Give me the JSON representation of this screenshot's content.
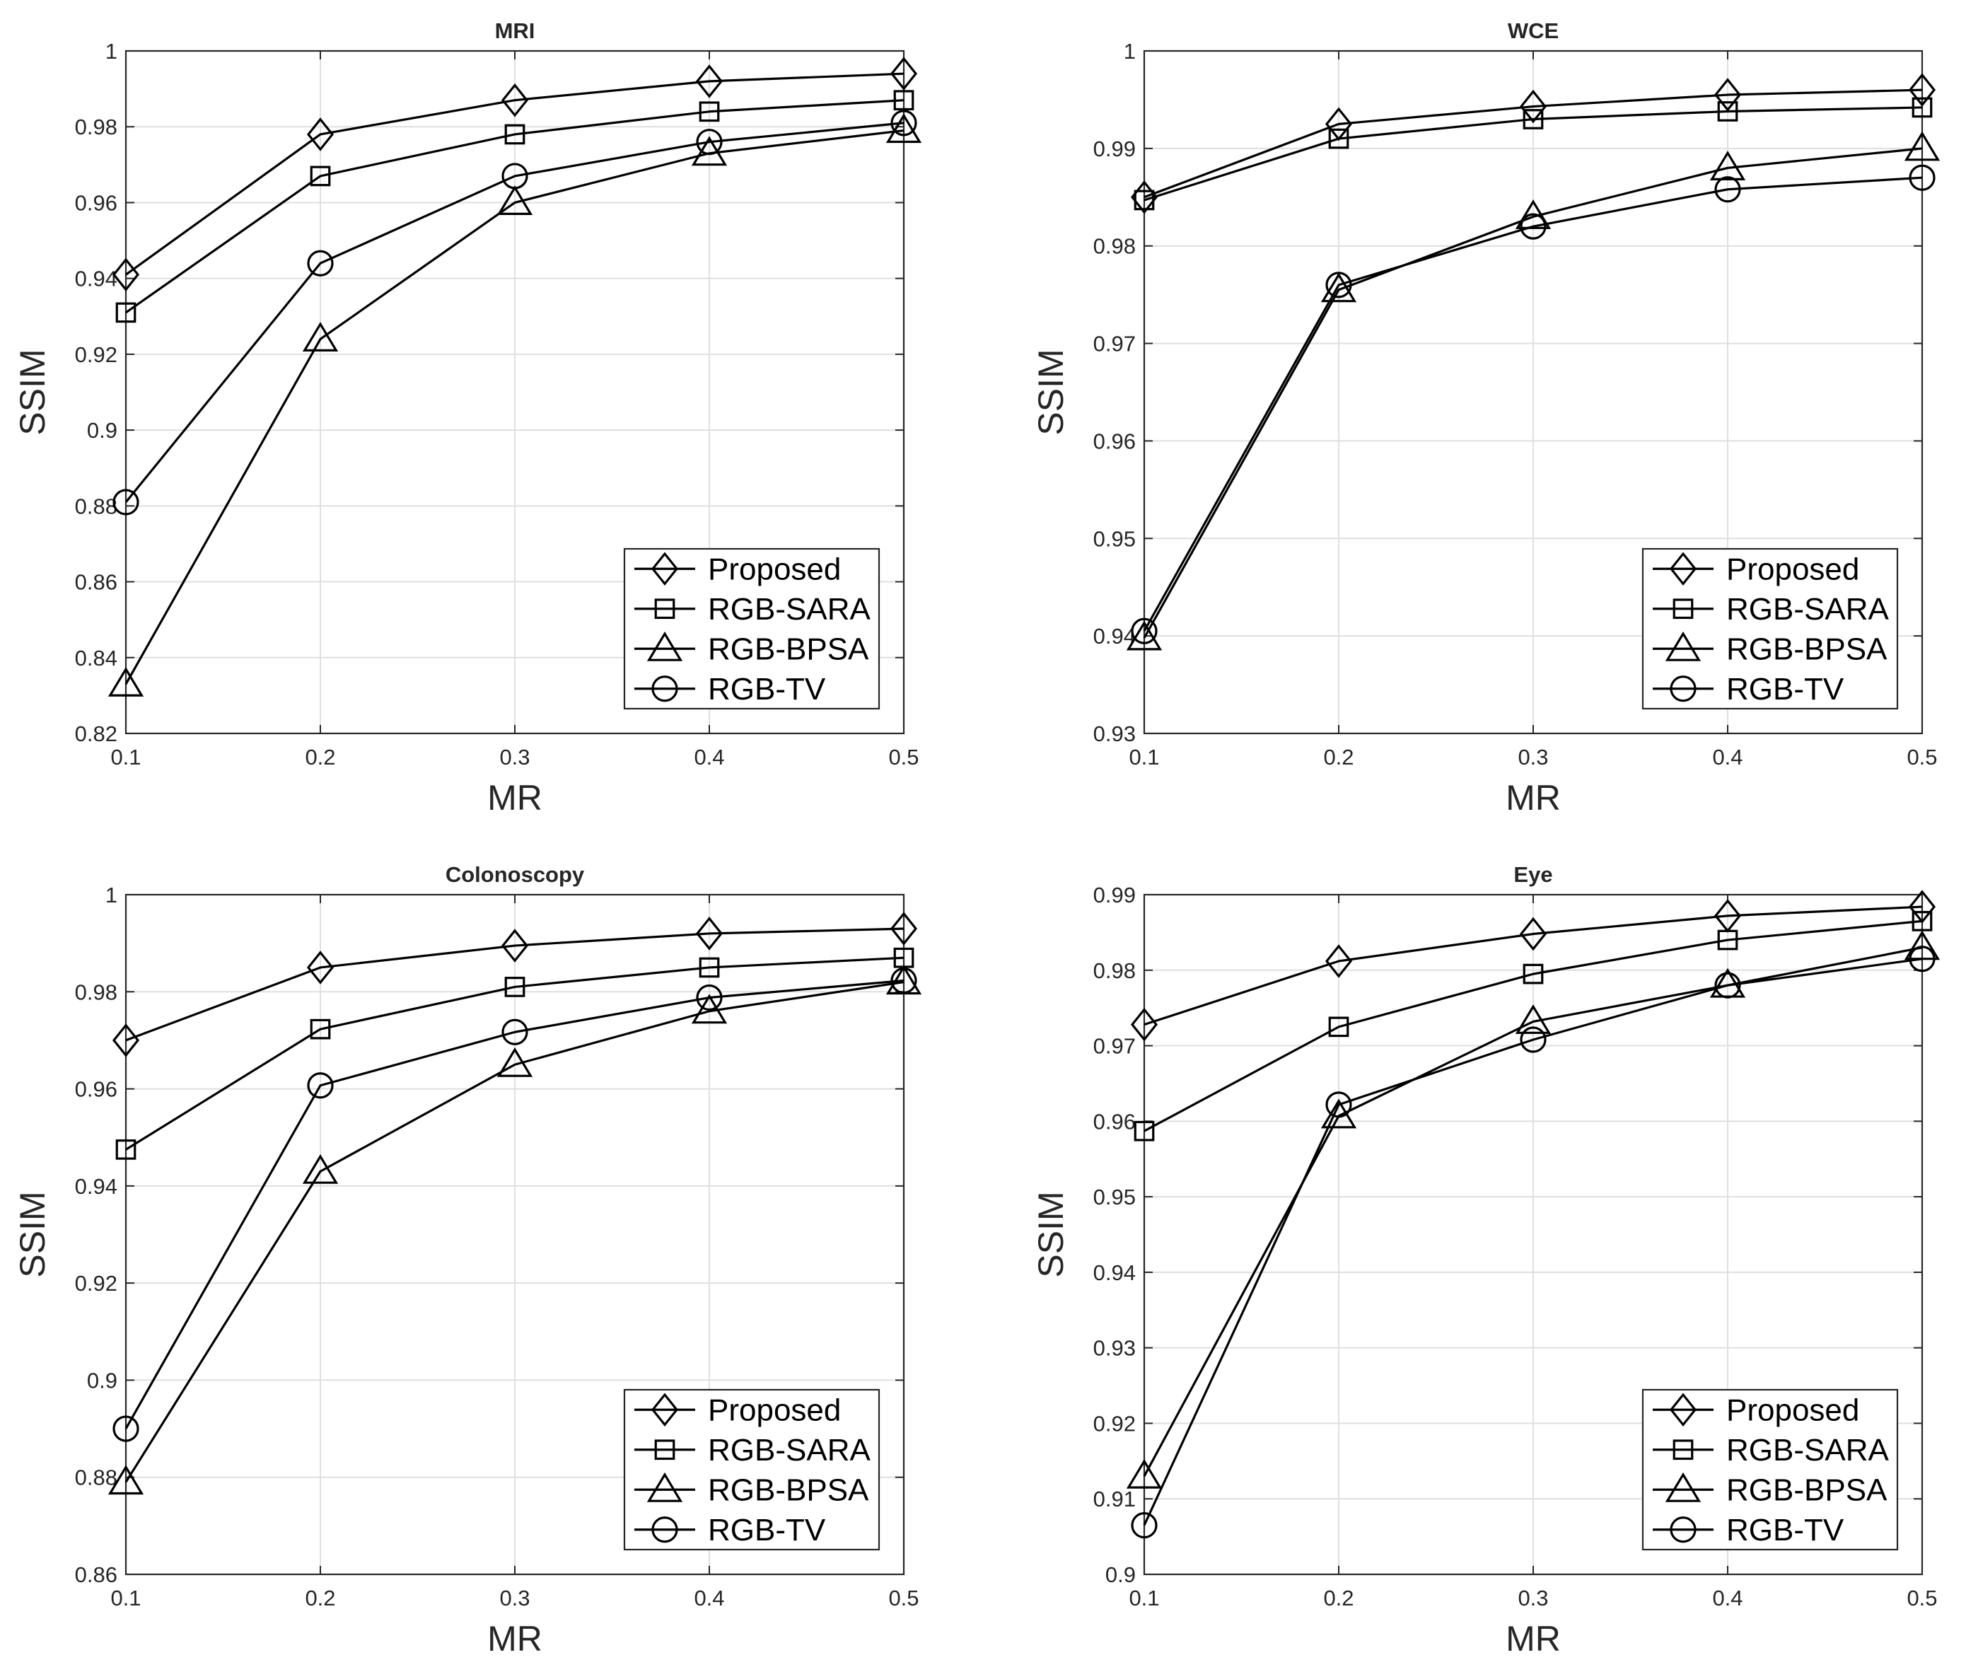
{
  "chart_data": [
    {
      "type": "line",
      "title": "MRI",
      "xlabel": "MR",
      "ylabel": "SSIM",
      "x": [
        0.1,
        0.2,
        0.3,
        0.4,
        0.5
      ],
      "xlim": [
        0.1,
        0.5
      ],
      "ylim": [
        0.82,
        1.0
      ],
      "xticks": [
        "0.1",
        "0.2",
        "0.3",
        "0.4",
        "0.5"
      ],
      "yticks": [
        "0.82",
        "0.84",
        "0.86",
        "0.88",
        "0.9",
        "0.92",
        "0.94",
        "0.96",
        "0.98",
        "1"
      ],
      "grid": true,
      "legend_position": "bottom-right",
      "series": [
        {
          "name": "Proposed",
          "marker": "diamond",
          "values": [
            0.941,
            0.978,
            0.987,
            0.992,
            0.994
          ]
        },
        {
          "name": "RGB-SARA",
          "marker": "square",
          "values": [
            0.931,
            0.967,
            0.978,
            0.984,
            0.987
          ]
        },
        {
          "name": "RGB-BPSA",
          "marker": "triangle",
          "values": [
            0.833,
            0.924,
            0.96,
            0.973,
            0.979
          ]
        },
        {
          "name": "RGB-TV",
          "marker": "circle",
          "values": [
            0.881,
            0.944,
            0.967,
            0.976,
            0.981
          ]
        }
      ]
    },
    {
      "type": "line",
      "title": "WCE",
      "xlabel": "MR",
      "ylabel": "SSIM",
      "x": [
        0.1,
        0.2,
        0.3,
        0.4,
        0.5
      ],
      "xlim": [
        0.1,
        0.5
      ],
      "ylim": [
        0.93,
        1.0
      ],
      "xticks": [
        "0.1",
        "0.2",
        "0.3",
        "0.4",
        "0.5"
      ],
      "yticks": [
        "0.93",
        "0.94",
        "0.95",
        "0.96",
        "0.97",
        "0.98",
        "0.99",
        "1"
      ],
      "grid": true,
      "legend_position": "bottom-right",
      "series": [
        {
          "name": "Proposed",
          "marker": "diamond",
          "values": [
            0.985,
            0.9925,
            0.9943,
            0.9955,
            0.996
          ]
        },
        {
          "name": "RGB-SARA",
          "marker": "square",
          "values": [
            0.9847,
            0.991,
            0.993,
            0.9938,
            0.9942
          ]
        },
        {
          "name": "RGB-BPSA",
          "marker": "triangle",
          "values": [
            0.9398,
            0.9755,
            0.983,
            0.988,
            0.99
          ]
        },
        {
          "name": "RGB-TV",
          "marker": "circle",
          "values": [
            0.9405,
            0.976,
            0.982,
            0.9858,
            0.987
          ]
        }
      ]
    },
    {
      "type": "line",
      "title": "Colonoscopy",
      "xlabel": "MR",
      "ylabel": "SSIM",
      "x": [
        0.1,
        0.2,
        0.3,
        0.4,
        0.5
      ],
      "xlim": [
        0.1,
        0.5
      ],
      "ylim": [
        0.86,
        1.0
      ],
      "xticks": [
        "0.1",
        "0.2",
        "0.3",
        "0.4",
        "0.5"
      ],
      "yticks": [
        "0.86",
        "0.88",
        "0.9",
        "0.92",
        "0.94",
        "0.96",
        "0.98",
        "1"
      ],
      "grid": true,
      "legend_position": "bottom-right",
      "series": [
        {
          "name": "Proposed",
          "marker": "diamond",
          "values": [
            0.97,
            0.985,
            0.9895,
            0.992,
            0.993
          ]
        },
        {
          "name": "RGB-SARA",
          "marker": "square",
          "values": [
            0.9475,
            0.9723,
            0.981,
            0.985,
            0.987
          ]
        },
        {
          "name": "RGB-BPSA",
          "marker": "triangle",
          "values": [
            0.879,
            0.943,
            0.965,
            0.976,
            0.982
          ]
        },
        {
          "name": "RGB-TV",
          "marker": "circle",
          "values": [
            0.89,
            0.9607,
            0.9717,
            0.9788,
            0.9823
          ]
        }
      ]
    },
    {
      "type": "line",
      "title": "Eye",
      "xlabel": "MR",
      "ylabel": "SSIM",
      "x": [
        0.1,
        0.2,
        0.3,
        0.4,
        0.5
      ],
      "xlim": [
        0.1,
        0.5
      ],
      "ylim": [
        0.9,
        0.99
      ],
      "xticks": [
        "0.1",
        "0.2",
        "0.3",
        "0.4",
        "0.5"
      ],
      "yticks": [
        "0.9",
        "0.91",
        "0.92",
        "0.93",
        "0.94",
        "0.95",
        "0.96",
        "0.97",
        "0.98",
        "0.99"
      ],
      "grid": true,
      "legend_position": "bottom-right",
      "series": [
        {
          "name": "Proposed",
          "marker": "diamond",
          "values": [
            0.9728,
            0.9812,
            0.9848,
            0.9872,
            0.9884
          ]
        },
        {
          "name": "RGB-SARA",
          "marker": "square",
          "values": [
            0.9587,
            0.9725,
            0.9795,
            0.984,
            0.9865
          ]
        },
        {
          "name": "RGB-BPSA",
          "marker": "triangle",
          "values": [
            0.913,
            0.9607,
            0.9732,
            0.978,
            0.983
          ]
        },
        {
          "name": "RGB-TV",
          "marker": "circle",
          "values": [
            0.9065,
            0.9622,
            0.9708,
            0.978,
            0.9815
          ]
        }
      ]
    }
  ]
}
